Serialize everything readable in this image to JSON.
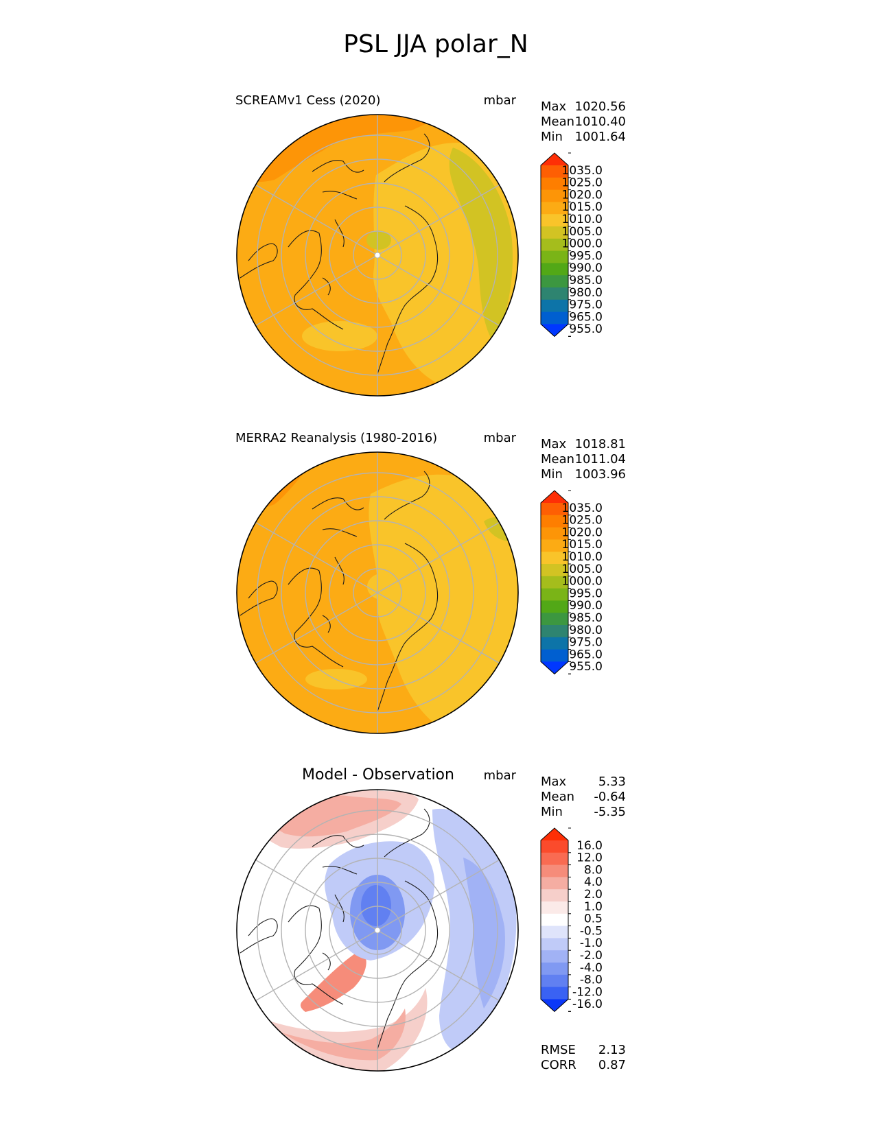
{
  "title": "PSL JJA polar_N",
  "chart_data": [
    {
      "type": "contour-map",
      "projection": "north-polar-stereographic",
      "title": "SCREAMv1 Cess (2020)",
      "units": "mbar",
      "stats": [
        {
          "label": "Max",
          "value": "1020.56"
        },
        {
          "label": "Mean",
          "value": "1010.40"
        },
        {
          "label": "Min",
          "value": "1001.64"
        }
      ],
      "colorbar": {
        "ticks": [
          "1035.0",
          "1025.0",
          "1020.0",
          "1015.0",
          "1010.0",
          "1005.0",
          "1000.0",
          "995.0",
          "990.0",
          "985.0",
          "980.0",
          "975.0",
          "965.0",
          "955.0"
        ],
        "colors": [
          "#fe2f06",
          "#fe5f03",
          "#fe7e00",
          "#fd9507",
          "#fcab14",
          "#f9c42a",
          "#d2c323",
          "#a5bd1c",
          "#7ab417",
          "#52a817",
          "#3c9740",
          "#2e8470",
          "#0d74a8",
          "#005fd0",
          "#0037ff"
        ]
      },
      "fill_levels": [
        1015,
        1010,
        1005
      ],
      "polar_level": 1000
    },
    {
      "type": "contour-map",
      "projection": "north-polar-stereographic",
      "title": "MERRA2 Reanalysis (1980-2016)",
      "units": "mbar",
      "stats": [
        {
          "label": "Max",
          "value": "1018.81"
        },
        {
          "label": "Mean",
          "value": "1011.04"
        },
        {
          "label": "Min",
          "value": "1003.96"
        }
      ],
      "colorbar": {
        "ticks": [
          "1035.0",
          "1025.0",
          "1020.0",
          "1015.0",
          "1010.0",
          "1005.0",
          "1000.0",
          "995.0",
          "990.0",
          "985.0",
          "980.0",
          "975.0",
          "965.0",
          "955.0"
        ],
        "colors": [
          "#fe2f06",
          "#fe5f03",
          "#fe7e00",
          "#fd9507",
          "#fcab14",
          "#f9c42a",
          "#d2c323",
          "#a5bd1c",
          "#7ab417",
          "#52a817",
          "#3c9740",
          "#2e8470",
          "#0d74a8",
          "#005fd0",
          "#0037ff"
        ]
      },
      "fill_levels": [
        1015,
        1010,
        1005
      ],
      "polar_level": 1010
    },
    {
      "type": "contour-map",
      "projection": "north-polar-stereographic",
      "title": "Model - Observation",
      "units": "mbar",
      "stats": [
        {
          "label": "Max",
          "value": "5.33"
        },
        {
          "label": "Mean",
          "value": "-0.64"
        },
        {
          "label": "Min",
          "value": "-5.35"
        }
      ],
      "colorbar": {
        "ticks": [
          "16.0",
          "12.0",
          "8.0",
          "4.0",
          "2.0",
          "1.0",
          "0.5",
          "-0.5",
          "-1.0",
          "-2.0",
          "-4.0",
          "-8.0",
          "-12.0",
          "-16.0"
        ],
        "colors": [
          "#fe2f06",
          "#fb4b2c",
          "#f96b52",
          "#f68c7a",
          "#f5ada2",
          "#f6cfca",
          "#fbeae8",
          "#ffffff",
          "#dfe4fb",
          "#c0cbf8",
          "#a1b2f5",
          "#8099f2",
          "#6180f1",
          "#3a62f3",
          "#0b38f8"
        ]
      },
      "stats_footer": [
        {
          "label": "RMSE",
          "value": "2.13"
        },
        {
          "label": "CORR",
          "value": "0.87"
        }
      ],
      "diff_levels": [
        2,
        -1,
        -4
      ],
      "polar_level": -4
    }
  ]
}
